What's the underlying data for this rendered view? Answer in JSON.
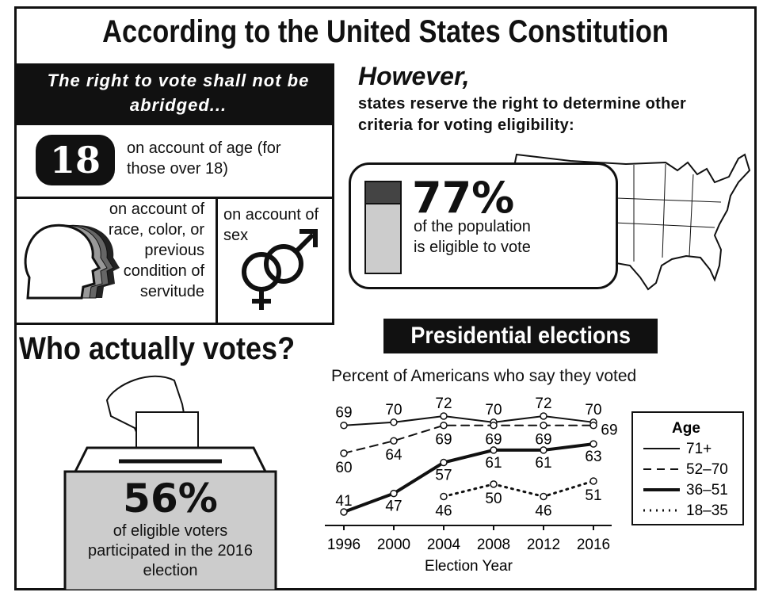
{
  "header": {
    "title": "According to the United States Constitution"
  },
  "constitution": {
    "banner": "The right to vote shall not be abridged...",
    "age": {
      "number": "18",
      "text": "on account of age (for those over 18)"
    },
    "race": {
      "text": "on account of race, color, or previous condition of servitude"
    },
    "sex": {
      "text": "on account of sex"
    }
  },
  "however": {
    "heading": "However,",
    "text": "states reserve the right to determine other criteria for voting eligibility:"
  },
  "eligible": {
    "percent": "77%",
    "text": "of the population is eligible to vote"
  },
  "turnout": {
    "heading": "Who actually votes?",
    "percent": "56%",
    "text": "of eligible voters participated in the 2016 election"
  },
  "chart_data": {
    "type": "line",
    "title": "Presidential elections",
    "subtitle": "Percent of Americans who say they voted",
    "xlabel": "Election Year",
    "x": [
      1996,
      2000,
      2004,
      2008,
      2012,
      2016
    ],
    "xlim": [
      1996,
      2016
    ],
    "xticks": [
      1996,
      2000,
      2004,
      2008,
      2012,
      2016
    ],
    "legend_title": "Age",
    "legend": "right",
    "series": [
      {
        "name": "71+",
        "color": "#111111",
        "dash": "solid",
        "width": 2,
        "values": [
          69,
          70,
          72,
          70,
          72,
          70
        ]
      },
      {
        "name": "52–70",
        "color": "#111111",
        "dash": "dashed",
        "width": 2,
        "values": [
          60,
          64,
          69,
          69,
          69,
          69
        ]
      },
      {
        "name": "36–51",
        "color": "#111111",
        "dash": "solid",
        "width": 4,
        "values": [
          41,
          47,
          57,
          61,
          61,
          63
        ]
      },
      {
        "name": "18–35",
        "color": "#111111",
        "dash": "dotted",
        "width": 3,
        "values": [
          null,
          null,
          46,
          50,
          46,
          51
        ]
      }
    ]
  }
}
